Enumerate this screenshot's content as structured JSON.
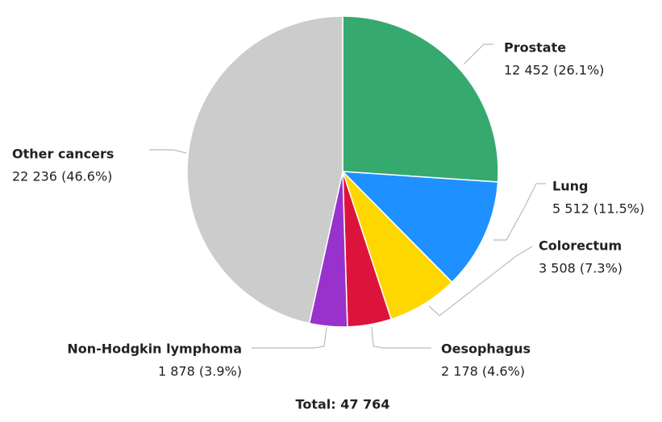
{
  "chart_data": {
    "type": "pie",
    "categories": [
      "Prostate",
      "Lung",
      "Colorectum",
      "Oesophagus",
      "Non-Hodgkin lymphoma",
      "Other cancers"
    ],
    "values": [
      12452,
      5512,
      3508,
      2178,
      1878,
      22236
    ],
    "value_labels": [
      "12 452 (26.1%)",
      "5 512 (11.5%)",
      "3 508 (7.3%)",
      "2 178 (4.6%)",
      "1 878 (3.9%)",
      "22 236 (46.6%)"
    ],
    "colors": [
      "#36a96f",
      "#1e90ff",
      "#ffd700",
      "#dc143c",
      "#9932cc",
      "#cccccc"
    ],
    "footer": "Total: 47 764"
  }
}
